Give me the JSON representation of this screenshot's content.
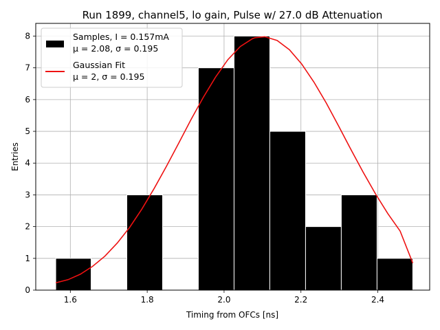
{
  "chart_data": {
    "type": "bar",
    "title": "Run 1899, channel5, lo gain, Pulse w/ 27.0 dB Attenuation",
    "xlabel": "Timing from OFCs [ns]",
    "ylabel": "Entries",
    "xlim": [
      1.51,
      2.535
    ],
    "ylim": [
      0,
      8.4
    ],
    "xticks": [
      "1.6",
      "1.8",
      "2.0",
      "2.2",
      "2.4"
    ],
    "yticks": [
      "0",
      "1",
      "2",
      "3",
      "4",
      "5",
      "6",
      "7",
      "8"
    ],
    "grid": true,
    "legend_position": "top-left",
    "histogram": {
      "name": "Samples, I = 0.157mA",
      "stats": "μ = 2.08, σ = 0.195",
      "color": "#000000",
      "bins": [
        {
          "x0": 1.562,
          "x1": 1.654,
          "count": 1
        },
        {
          "x0": 1.654,
          "x1": 1.747,
          "count": 0
        },
        {
          "x0": 1.747,
          "x1": 1.84,
          "count": 3
        },
        {
          "x0": 1.84,
          "x1": 1.933,
          "count": 0
        },
        {
          "x0": 1.933,
          "x1": 2.026,
          "count": 7
        },
        {
          "x0": 2.026,
          "x1": 2.119,
          "count": 8
        },
        {
          "x0": 2.119,
          "x1": 2.212,
          "count": 5
        },
        {
          "x0": 2.212,
          "x1": 2.305,
          "count": 2
        },
        {
          "x0": 2.305,
          "x1": 2.398,
          "count": 3
        },
        {
          "x0": 2.398,
          "x1": 2.491,
          "count": 1
        }
      ]
    },
    "fit": {
      "name": "Gaussian Fit",
      "stats": "μ = 2, σ = 0.195",
      "color": "#ee1111",
      "points": [
        [
          1.562,
          0.23
        ],
        [
          1.594,
          0.33
        ],
        [
          1.626,
          0.5
        ],
        [
          1.658,
          0.75
        ],
        [
          1.69,
          1.07
        ],
        [
          1.722,
          1.48
        ],
        [
          1.754,
          1.97
        ],
        [
          1.786,
          2.55
        ],
        [
          1.818,
          3.2
        ],
        [
          1.85,
          3.9
        ],
        [
          1.882,
          4.63
        ],
        [
          1.914,
          5.37
        ],
        [
          1.946,
          6.07
        ],
        [
          1.978,
          6.71
        ],
        [
          2.01,
          7.26
        ],
        [
          2.042,
          7.67
        ],
        [
          2.074,
          7.92
        ],
        [
          2.081,
          7.95
        ],
        [
          2.106,
          7.98
        ],
        [
          2.138,
          7.86
        ],
        [
          2.17,
          7.57
        ],
        [
          2.202,
          7.12
        ],
        [
          2.234,
          6.55
        ],
        [
          2.266,
          5.89
        ],
        [
          2.298,
          5.17
        ],
        [
          2.33,
          4.43
        ],
        [
          2.362,
          3.71
        ],
        [
          2.394,
          3.03
        ],
        [
          2.426,
          2.41
        ],
        [
          2.458,
          1.86
        ],
        [
          2.491,
          0.85
        ]
      ]
    }
  }
}
